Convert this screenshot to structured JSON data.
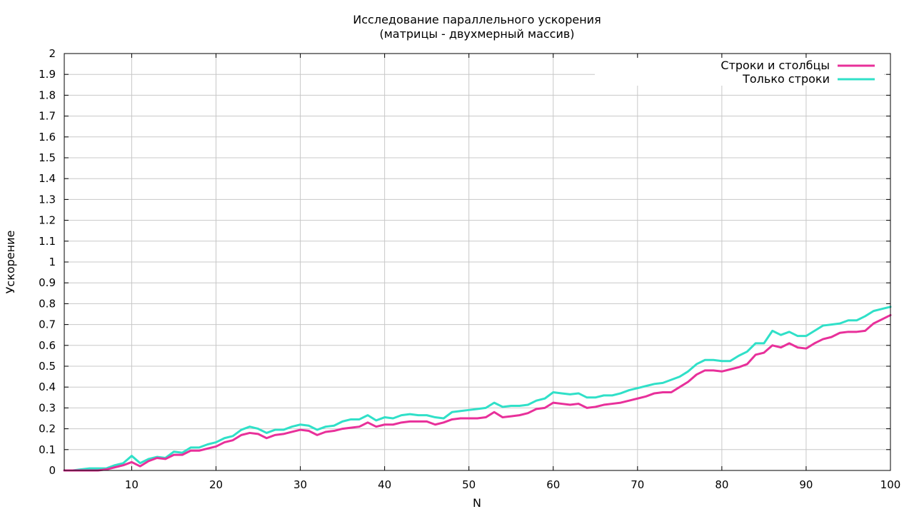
{
  "chart_data": {
    "type": "line",
    "title": "Исследование параллельного ускорения",
    "subtitle": "(матрицы - двухмерный массив)",
    "xlabel": "N",
    "ylabel": "Ускорение",
    "xlim": [
      2,
      100
    ],
    "ylim": [
      0,
      2
    ],
    "x_ticks": [
      10,
      20,
      30,
      40,
      50,
      60,
      70,
      80,
      90,
      100
    ],
    "y_ticks": [
      0,
      0.1,
      0.2,
      0.3,
      0.4,
      0.5,
      0.6,
      0.7,
      0.8,
      0.9,
      1,
      1.1,
      1.2,
      1.3,
      1.4,
      1.5,
      1.6,
      1.7,
      1.8,
      1.9,
      2
    ],
    "grid": true,
    "legend_position": "top-right",
    "x": [
      2,
      3,
      4,
      5,
      6,
      7,
      8,
      9,
      10,
      11,
      12,
      13,
      14,
      15,
      16,
      17,
      18,
      19,
      20,
      21,
      22,
      23,
      24,
      25,
      26,
      27,
      28,
      29,
      30,
      31,
      32,
      33,
      34,
      35,
      36,
      37,
      38,
      39,
      40,
      41,
      42,
      43,
      44,
      45,
      46,
      47,
      48,
      49,
      50,
      51,
      52,
      53,
      54,
      55,
      56,
      57,
      58,
      59,
      60,
      61,
      62,
      63,
      64,
      65,
      66,
      67,
      68,
      69,
      70,
      71,
      72,
      73,
      74,
      75,
      76,
      77,
      78,
      79,
      80,
      81,
      82,
      83,
      84,
      85,
      86,
      87,
      88,
      89,
      90,
      91,
      92,
      93,
      94,
      95,
      96,
      97,
      98,
      99,
      100
    ],
    "series": [
      {
        "name": "Строки и столбцы",
        "color": "#e8309a",
        "values": [
          0,
          0,
          0,
          0,
          0,
          0.005,
          0.015,
          0.025,
          0.04,
          0.02,
          0.045,
          0.06,
          0.055,
          0.075,
          0.075,
          0.095,
          0.095,
          0.105,
          0.115,
          0.135,
          0.145,
          0.17,
          0.18,
          0.175,
          0.155,
          0.17,
          0.175,
          0.185,
          0.195,
          0.19,
          0.17,
          0.185,
          0.19,
          0.2,
          0.205,
          0.21,
          0.23,
          0.21,
          0.22,
          0.22,
          0.23,
          0.235,
          0.235,
          0.235,
          0.22,
          0.23,
          0.245,
          0.25,
          0.25,
          0.25,
          0.255,
          0.28,
          0.255,
          0.26,
          0.265,
          0.275,
          0.295,
          0.3,
          0.325,
          0.32,
          0.315,
          0.32,
          0.3,
          0.305,
          0.315,
          0.32,
          0.325,
          0.335,
          0.345,
          0.355,
          0.37,
          0.375,
          0.375,
          0.4,
          0.425,
          0.46,
          0.48,
          0.48,
          0.475,
          0.485,
          0.495,
          0.51,
          0.555,
          0.565,
          0.6,
          0.59,
          0.61,
          0.59,
          0.585,
          0.61,
          0.63,
          0.64,
          0.66,
          0.665,
          0.665,
          0.67,
          0.705,
          0.725,
          0.745
        ]
      },
      {
        "name": "Только строки",
        "color": "#30e0c8",
        "values": [
          0,
          0,
          0.005,
          0.01,
          0.01,
          0.01,
          0.025,
          0.035,
          0.07,
          0.035,
          0.055,
          0.065,
          0.06,
          0.09,
          0.085,
          0.11,
          0.11,
          0.125,
          0.135,
          0.155,
          0.165,
          0.195,
          0.21,
          0.2,
          0.18,
          0.195,
          0.195,
          0.21,
          0.22,
          0.215,
          0.195,
          0.21,
          0.215,
          0.235,
          0.245,
          0.245,
          0.265,
          0.24,
          0.255,
          0.25,
          0.265,
          0.27,
          0.265,
          0.265,
          0.255,
          0.25,
          0.28,
          0.285,
          0.29,
          0.295,
          0.3,
          0.325,
          0.305,
          0.31,
          0.31,
          0.315,
          0.335,
          0.345,
          0.375,
          0.37,
          0.365,
          0.37,
          0.35,
          0.35,
          0.36,
          0.36,
          0.37,
          0.385,
          0.395,
          0.405,
          0.415,
          0.42,
          0.435,
          0.45,
          0.475,
          0.51,
          0.53,
          0.53,
          0.525,
          0.525,
          0.55,
          0.57,
          0.61,
          0.61,
          0.67,
          0.65,
          0.665,
          0.645,
          0.645,
          0.67,
          0.695,
          0.7,
          0.705,
          0.72,
          0.72,
          0.74,
          0.765,
          0.775,
          0.785
        ]
      }
    ]
  }
}
